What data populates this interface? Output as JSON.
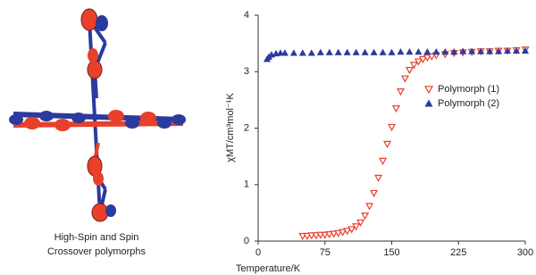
{
  "figure": {
    "caption_lines": [
      "High-Spin and Spin",
      "Crossover polymorphs"
    ]
  },
  "chart_data": {
    "type": "scatter",
    "xlabel": "Temperature/K",
    "ylabel": "χMT/cm³mol⁻¹K",
    "xlim": [
      0,
      300
    ],
    "xticks": [
      0,
      75,
      150,
      225,
      300
    ],
    "ylim": [
      0,
      4
    ],
    "yticks": [
      0,
      1,
      2,
      3,
      4
    ],
    "grid": false,
    "legend": "upper right",
    "series": [
      {
        "name": "Polymorph (1)",
        "color": "#e8402a",
        "marker": "triangle-down-open",
        "x": [
          50,
          55,
          60,
          65,
          70,
          75,
          80,
          85,
          90,
          95,
          100,
          105,
          110,
          115,
          120,
          125,
          130,
          135,
          140,
          145,
          150,
          155,
          160,
          165,
          170,
          175,
          180,
          185,
          190,
          195,
          200,
          210,
          220,
          230,
          240,
          250,
          260,
          270,
          280,
          290,
          300
        ],
        "values": [
          0.09,
          0.09,
          0.1,
          0.1,
          0.11,
          0.11,
          0.12,
          0.13,
          0.14,
          0.16,
          0.18,
          0.21,
          0.26,
          0.33,
          0.45,
          0.62,
          0.85,
          1.12,
          1.42,
          1.72,
          2.02,
          2.35,
          2.65,
          2.88,
          3.03,
          3.12,
          3.18,
          3.22,
          3.25,
          3.27,
          3.29,
          3.31,
          3.33,
          3.34,
          3.35,
          3.36,
          3.36,
          3.37,
          3.37,
          3.38,
          3.39
        ]
      },
      {
        "name": "Polymorph (2)",
        "color": "#2b3a9e",
        "marker": "triangle-up",
        "x": [
          10,
          12,
          15,
          20,
          25,
          30,
          40,
          50,
          60,
          70,
          80,
          90,
          100,
          110,
          120,
          130,
          140,
          150,
          160,
          170,
          180,
          190,
          200,
          210,
          220,
          230,
          240,
          250,
          260,
          270,
          280,
          290,
          300
        ],
        "values": [
          3.22,
          3.26,
          3.3,
          3.32,
          3.33,
          3.33,
          3.33,
          3.33,
          3.33,
          3.34,
          3.34,
          3.34,
          3.34,
          3.34,
          3.34,
          3.34,
          3.34,
          3.34,
          3.35,
          3.35,
          3.35,
          3.35,
          3.35,
          3.35,
          3.35,
          3.36,
          3.36,
          3.36,
          3.36,
          3.36,
          3.37,
          3.37,
          3.37
        ]
      }
    ]
  }
}
